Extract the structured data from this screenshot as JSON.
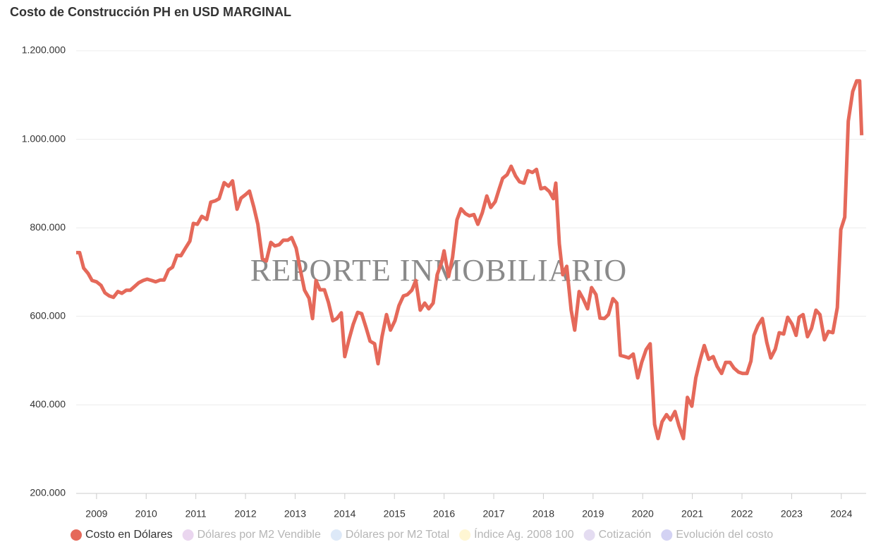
{
  "chart_data": {
    "type": "line",
    "title": "Costo de Construcción PH en USD MARGINAL",
    "watermark": "REPORTE INMOBILIARIO",
    "xlim": [
      2008.59,
      2024.5
    ],
    "xticks": [
      2009,
      2010,
      2011,
      2012,
      2013,
      2014,
      2015,
      2016,
      2017,
      2018,
      2019,
      2020,
      2021,
      2022,
      2023,
      2024
    ],
    "ylim": [
      200000,
      1200000
    ],
    "yticks": [
      {
        "value": 200000,
        "label": "200.000"
      },
      {
        "value": 400000,
        "label": "400.000"
      },
      {
        "value": 600000,
        "label": "600.000"
      },
      {
        "value": 800000,
        "label": "800.000"
      },
      {
        "value": 1000000,
        "label": "1.000.000"
      },
      {
        "value": 1200000,
        "label": "1.200.000"
      }
    ],
    "grid": true,
    "legend": "bottom",
    "x": [
      2008.59,
      2008.66,
      2008.74,
      2008.83,
      2008.91,
      2009.0,
      2009.09,
      2009.17,
      2009.26,
      2009.34,
      2009.43,
      2009.51,
      2009.6,
      2009.68,
      2009.77,
      2009.85,
      2009.94,
      2010.02,
      2010.11,
      2010.19,
      2010.28,
      2010.36,
      2010.45,
      2010.53,
      2010.62,
      2010.7,
      2010.79,
      2010.88,
      2010.95,
      2011.03,
      2011.12,
      2011.22,
      2011.3,
      2011.39,
      2011.47,
      2011.57,
      2011.66,
      2011.74,
      2011.83,
      2011.91,
      2012.0,
      2012.08,
      2012.17,
      2012.25,
      2012.34,
      2012.42,
      2012.51,
      2012.59,
      2012.68,
      2012.76,
      2012.85,
      2012.93,
      2013.02,
      2013.11,
      2013.19,
      2013.28,
      2013.35,
      2013.42,
      2013.5,
      2013.59,
      2013.67,
      2013.76,
      2013.84,
      2013.93,
      2014.0,
      2014.09,
      2014.17,
      2014.26,
      2014.34,
      2014.43,
      2014.51,
      2014.6,
      2014.67,
      2014.75,
      2014.84,
      2014.92,
      2015.01,
      2015.09,
      2015.18,
      2015.26,
      2015.35,
      2015.43,
      2015.52,
      2015.61,
      2015.69,
      2015.78,
      2015.86,
      2015.95,
      2016.0,
      2016.09,
      2016.17,
      2016.26,
      2016.34,
      2016.43,
      2016.51,
      2016.6,
      2016.68,
      2016.77,
      2016.86,
      2016.94,
      2017.03,
      2017.11,
      2017.18,
      2017.27,
      2017.35,
      2017.44,
      2017.52,
      2017.61,
      2017.69,
      2017.78,
      2017.86,
      2017.95,
      2018.03,
      2018.12,
      2018.2,
      2018.25,
      2018.32,
      2018.39,
      2018.47,
      2018.56,
      2018.63,
      2018.72,
      2018.8,
      2018.89,
      2018.97,
      2019.06,
      2019.14,
      2019.23,
      2019.31,
      2019.4,
      2019.48,
      2019.55,
      2019.64,
      2019.72,
      2019.81,
      2019.9,
      2019.98,
      2020.07,
      2020.15,
      2020.24,
      2020.31,
      2020.39,
      2020.48,
      2020.56,
      2020.65,
      2020.73,
      2020.82,
      2020.9,
      2020.99,
      2021.07,
      2021.16,
      2021.24,
      2021.33,
      2021.42,
      2021.5,
      2021.59,
      2021.67,
      2021.76,
      2021.84,
      2021.93,
      2022.01,
      2022.1,
      2022.18,
      2022.24,
      2022.32,
      2022.41,
      2022.5,
      2022.58,
      2022.67,
      2022.75,
      2022.84,
      2022.92,
      2023.01,
      2023.09,
      2023.15,
      2023.23,
      2023.32,
      2023.4,
      2023.49,
      2023.57,
      2023.66,
      2023.74,
      2023.83,
      2023.92,
      2023.99,
      2024.07,
      2024.14,
      2024.23,
      2024.31,
      2024.37,
      2024.41
    ],
    "series": [
      {
        "name": "Costo en Dólares",
        "color": "#e5695a",
        "values": [
          744000,
          744000,
          709000,
          697000,
          681000,
          678000,
          670000,
          653000,
          646000,
          643000,
          656000,
          652000,
          659000,
          659000,
          668000,
          676000,
          681000,
          684000,
          681000,
          678000,
          682000,
          682000,
          705000,
          711000,
          738000,
          737000,
          754000,
          770000,
          810000,
          808000,
          826000,
          819000,
          858000,
          861000,
          866000,
          902000,
          894000,
          906000,
          842000,
          867000,
          875000,
          883000,
          846000,
          808000,
          730000,
          725000,
          767000,
          759000,
          762000,
          772000,
          772000,
          778000,
          754000,
          702000,
          659000,
          641000,
          595000,
          681000,
          660000,
          660000,
          632000,
          590000,
          595000,
          608000,
          509000,
          550000,
          582000,
          609000,
          606000,
          574000,
          544000,
          538000,
          493000,
          554000,
          604000,
          569000,
          590000,
          624000,
          646000,
          649000,
          659000,
          681000,
          614000,
          630000,
          617000,
          630000,
          694000,
          722000,
          748000,
          690000,
          733000,
          818000,
          843000,
          832000,
          827000,
          830000,
          808000,
          834000,
          872000,
          846000,
          859000,
          888000,
          912000,
          920000,
          939000,
          917000,
          904000,
          901000,
          929000,
          925000,
          932000,
          888000,
          891000,
          882000,
          866000,
          901000,
          764000,
          694000,
          713000,
          614000,
          569000,
          656000,
          640000,
          617000,
          665000,
          649000,
          596000,
          595000,
          604000,
          640000,
          630000,
          512000,
          509000,
          506000,
          515000,
          461000,
          496000,
          525000,
          538000,
          356000,
          324000,
          362000,
          378000,
          366000,
          385000,
          353000,
          324000,
          417000,
          397000,
          461000,
          503000,
          534000,
          503000,
          509000,
          487000,
          471000,
          496000,
          496000,
          483000,
          474000,
          471000,
          471000,
          499000,
          557000,
          579000,
          595000,
          541000,
          506000,
          526000,
          563000,
          560000,
          598000,
          582000,
          557000,
          598000,
          604000,
          554000,
          573000,
          614000,
          604000,
          547000,
          566000,
          563000,
          620000,
          796000,
          824000,
          1041000,
          1108000,
          1132000,
          1132000,
          1009000
        ]
      }
    ],
    "hidden_series": [
      {
        "name": "Dólares por M2 Vendible",
        "color": "#ead6ef"
      },
      {
        "name": "Dólares por M2 Total",
        "color": "#dde9f8"
      },
      {
        "name": "Índice Ag. 2008 100",
        "color": "#fff6d3"
      },
      {
        "name": "Cotización",
        "color": "#e4dcf1"
      },
      {
        "name": "Evolución del costo",
        "color": "#d3d2f3"
      }
    ]
  }
}
